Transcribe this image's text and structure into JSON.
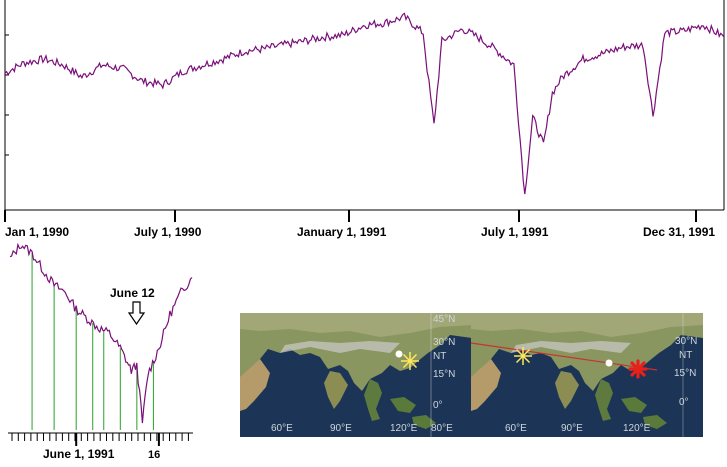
{
  "chart_data": [
    {
      "type": "line",
      "title": "",
      "xlabel": "",
      "ylabel": "",
      "x_tick_labels": [
        "Jan 1, 1990",
        "July 1, 1990",
        "January 1, 1991",
        "July 1, 1991",
        "Dec 31, 1991"
      ],
      "x_range": [
        "1990-01-01",
        "1991-12-31"
      ],
      "y_range": [
        0,
        100
      ],
      "grid": false,
      "series": [
        {
          "color": "#7a0f7a",
          "x": [
            "1990-01-01",
            "1990-01-20",
            "1990-02-10",
            "1990-03-01",
            "1990-03-20",
            "1990-04-10",
            "1990-05-01",
            "1990-05-20",
            "1990-06-10",
            "1990-07-01",
            "1990-07-20",
            "1990-08-10",
            "1990-09-01",
            "1990-09-20",
            "1990-10-10",
            "1990-11-01",
            "1990-11-20",
            "1990-12-10",
            "1991-01-01",
            "1991-01-20",
            "1991-02-10",
            "1991-03-01",
            "1991-03-05",
            "1991-03-12",
            "1991-03-20",
            "1991-04-10",
            "1991-04-25",
            "1991-05-10",
            "1991-06-01",
            "1991-06-12",
            "1991-06-20",
            "1991-07-01",
            "1991-07-10",
            "1991-07-20",
            "1991-08-10",
            "1991-09-01",
            "1991-09-20",
            "1991-10-10",
            "1991-10-20",
            "1991-11-01",
            "1991-11-20",
            "1991-12-10",
            "1991-12-31"
          ],
          "y": [
            66,
            71,
            73,
            70,
            64,
            70,
            68,
            62,
            60,
            67,
            70,
            73,
            77,
            78,
            80,
            82,
            84,
            85,
            90,
            91,
            94,
            86,
            68,
            40,
            82,
            88,
            84,
            79,
            70,
            5,
            44,
            30,
            56,
            64,
            73,
            76,
            79,
            80,
            45,
            86,
            87,
            90,
            84
          ]
        }
      ]
    },
    {
      "type": "line",
      "title": "",
      "x_tick_labels": [
        "June 1, 1991",
        "16"
      ],
      "x_range": [
        "1991-05-20",
        "1991-06-22"
      ],
      "y_range": [
        0,
        100
      ],
      "annotations": [
        "June 12"
      ],
      "grid": false,
      "series": [
        {
          "color": "#7a0f7a",
          "x": [
            "1991-05-20",
            "1991-05-22",
            "1991-05-24",
            "1991-05-26",
            "1991-05-28",
            "1991-05-30",
            "1991-06-01",
            "1991-06-03",
            "1991-06-05",
            "1991-06-07",
            "1991-06-09",
            "1991-06-10",
            "1991-06-11",
            "1991-06-12",
            "1991-06-13",
            "1991-06-14",
            "1991-06-16",
            "1991-06-18",
            "1991-06-20",
            "1991-06-22"
          ],
          "y": [
            92,
            100,
            95,
            86,
            78,
            74,
            65,
            60,
            55,
            52,
            44,
            38,
            32,
            35,
            4,
            30,
            44,
            62,
            74,
            82
          ]
        }
      ],
      "markers": {
        "color": "#2aa02a",
        "x": [
          "1991-05-24",
          "1991-05-28",
          "1991-06-01",
          "1991-06-04",
          "1991-06-06",
          "1991-06-09",
          "1991-06-12",
          "1991-06-15"
        ]
      }
    }
  ],
  "maps": {
    "left": {
      "lat_labels": [
        "45°N",
        "30°N",
        "NT",
        "15°N",
        "0°"
      ],
      "lon_labels": [
        "60°E",
        "90°E",
        "120°E",
        "80°E"
      ]
    },
    "right": {
      "lat_labels": [
        "30°N",
        "NT",
        "15°N",
        "0°"
      ],
      "lon_labels": [
        "60°E",
        "90°E",
        "120°E"
      ]
    }
  },
  "colors": {
    "series": "#7a0f7a",
    "markers": "#2aa02a",
    "ocean": "#1c3455",
    "sun": "#ffe85a",
    "star": "#e8201c",
    "track": "#c83232"
  }
}
